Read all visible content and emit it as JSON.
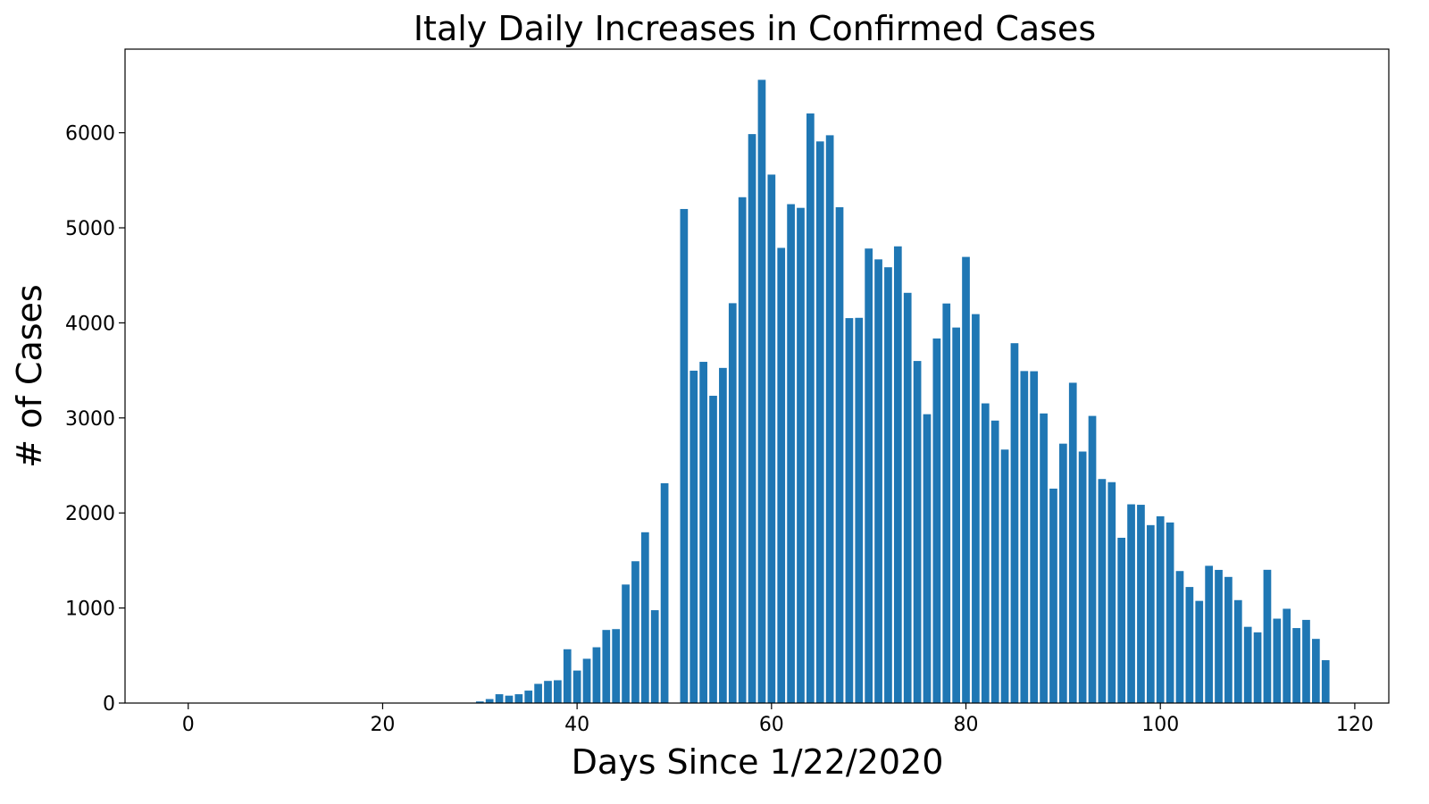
{
  "chart_data": {
    "type": "bar",
    "title": "Italy Daily Increases in Confirmed Cases",
    "xlabel": "Days Since 1/22/2020",
    "ylabel": "# of Cases",
    "xlim": [
      -6.5,
      123.5
    ],
    "ylim": [
      0,
      6880
    ],
    "x_ticks": [
      0,
      20,
      40,
      60,
      80,
      100,
      120
    ],
    "y_ticks": [
      0,
      1000,
      2000,
      3000,
      4000,
      5000,
      6000
    ],
    "bar_color": "#1f77b4",
    "grid": false,
    "x": [
      0,
      1,
      2,
      3,
      4,
      5,
      6,
      7,
      8,
      9,
      10,
      11,
      12,
      13,
      14,
      15,
      16,
      17,
      18,
      19,
      20,
      21,
      22,
      23,
      24,
      25,
      26,
      27,
      28,
      29,
      30,
      31,
      32,
      33,
      34,
      35,
      36,
      37,
      38,
      39,
      40,
      41,
      42,
      43,
      44,
      45,
      46,
      47,
      48,
      49,
      50,
      51,
      52,
      53,
      54,
      55,
      56,
      57,
      58,
      59,
      60,
      61,
      62,
      63,
      64,
      65,
      66,
      67,
      68,
      69,
      70,
      71,
      72,
      73,
      74,
      75,
      76,
      77,
      78,
      79,
      80,
      81,
      82,
      83,
      84,
      85,
      86,
      87,
      88,
      89,
      90,
      91,
      92,
      93,
      94,
      95,
      96,
      97,
      98,
      99,
      100,
      101,
      102,
      103,
      104,
      105,
      106,
      107,
      108,
      109,
      110,
      111,
      112,
      113,
      114,
      115,
      116,
      117
    ],
    "values": [
      0,
      0,
      0,
      0,
      0,
      0,
      0,
      0,
      0,
      2,
      0,
      0,
      0,
      0,
      0,
      0,
      0,
      0,
      0,
      0,
      0,
      0,
      0,
      0,
      0,
      0,
      0,
      0,
      0,
      0,
      17,
      42,
      93,
      78,
      93,
      131,
      202,
      233,
      240,
      566,
      342,
      466,
      587,
      769,
      778,
      1247,
      1492,
      1797,
      977,
      2313,
      0,
      5198,
      3497,
      3590,
      3233,
      3526,
      4207,
      5322,
      5986,
      6557,
      5560,
      4789,
      5249,
      5210,
      6203,
      5909,
      5974,
      5217,
      4050,
      4053,
      4782,
      4668,
      4585,
      4805,
      4316,
      3599,
      3039,
      3836,
      4204,
      3951,
      4694,
      4092,
      3153,
      2972,
      2667,
      3786,
      3493,
      3491,
      3047,
      2256,
      2729,
      3370,
      2646,
      3021,
      2357,
      2324,
      1739,
      2091,
      2086,
      1872,
      1965,
      1900,
      1389,
      1221,
      1075,
      1444,
      1401,
      1327,
      1083,
      802,
      744,
      1402,
      888,
      992,
      789,
      875,
      675,
      451
    ]
  }
}
